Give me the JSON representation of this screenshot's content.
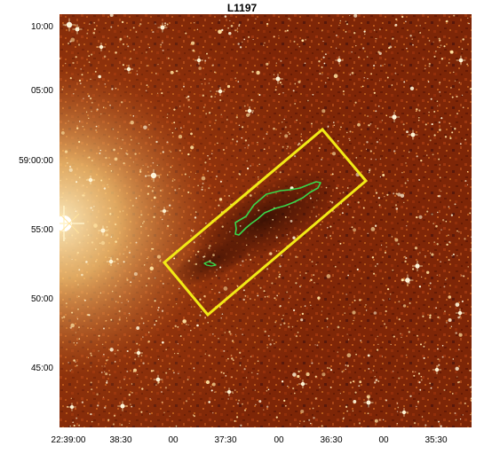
{
  "figure": {
    "title": "L1197",
    "colors": {
      "background_dark": "#3f0d02",
      "background_mid": "#8a2a08",
      "background_bright": "#d66b1a",
      "star_color": "#ffe7a8",
      "rectangle_color": "#f2ea16",
      "contour_color": "#39d84b"
    }
  },
  "axes": {
    "x_ticks": [
      "22:39:00",
      "38:30",
      "00",
      "37:30",
      "00",
      "36:30",
      "00",
      "35:30"
    ],
    "y_ticks": [
      "10:00",
      "05:00",
      "59:00:00",
      "55:00",
      "50:00",
      "45:00"
    ]
  },
  "annotations": {
    "rectangle_label": "",
    "contour_label": ""
  }
}
